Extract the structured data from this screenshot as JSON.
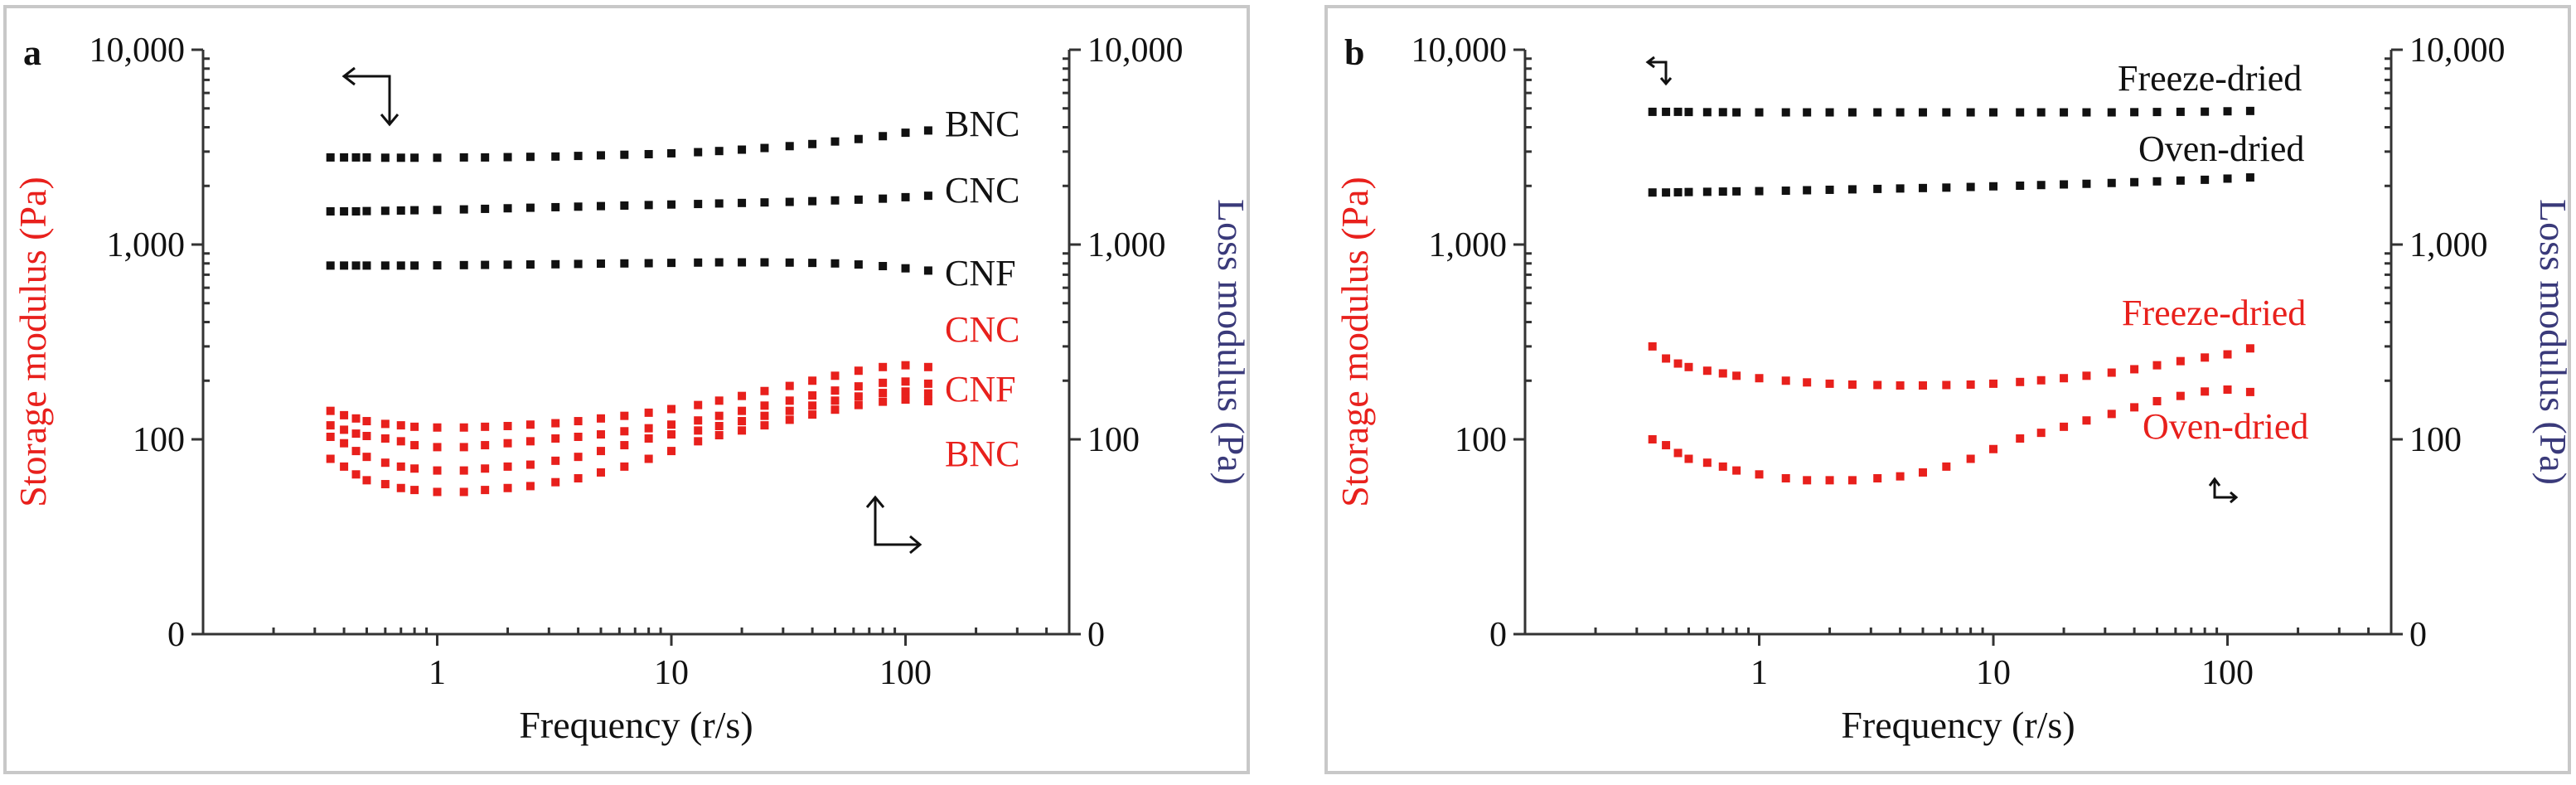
{
  "colors": {
    "storage": "#111111",
    "loss": "#e8201c",
    "loss_axis_label": "#3a3a7a"
  },
  "chart_data": [
    {
      "type": "scatter",
      "panel_label": "a",
      "title": "",
      "xlabel": "Frequency (r/s)",
      "ylabel": "Storage modulus (Pa)",
      "y2label": "Loss modulus (Pa)",
      "x_scale": "log",
      "y_scale": "symlog",
      "xlim": [
        0.1,
        500
      ],
      "ylim": [
        0,
        10000
      ],
      "x_ticks": [
        1,
        10,
        100
      ],
      "x_tick_labels": [
        "1",
        "10",
        "100"
      ],
      "y_ticks": [
        0,
        100,
        1000,
        10000
      ],
      "y_tick_labels": [
        "0",
        "100",
        "1,000",
        "10,000"
      ],
      "grid": false,
      "legend": "inline labels at right end of series",
      "series": [
        {
          "name": "BNC",
          "modulus": "storage",
          "label_color": "storage",
          "x": [
            0.35,
            0.4,
            0.45,
            0.5,
            0.6,
            0.7,
            0.8,
            1,
            1.3,
            1.6,
            2,
            2.5,
            3.2,
            4,
            5,
            6.3,
            8,
            10,
            13,
            16,
            20,
            25,
            32,
            40,
            50,
            63,
            80,
            100,
            125
          ],
          "y": [
            2800,
            2800,
            2800,
            2800,
            2790,
            2790,
            2790,
            2790,
            2800,
            2800,
            2810,
            2820,
            2830,
            2850,
            2870,
            2890,
            2910,
            2940,
            2980,
            3020,
            3070,
            3130,
            3200,
            3280,
            3380,
            3480,
            3600,
            3750,
            3850
          ]
        },
        {
          "name": "CNC",
          "modulus": "storage",
          "label_color": "storage",
          "x": [
            0.35,
            0.4,
            0.45,
            0.5,
            0.6,
            0.7,
            0.8,
            1,
            1.3,
            1.6,
            2,
            2.5,
            3.2,
            4,
            5,
            6.3,
            8,
            10,
            13,
            16,
            20,
            25,
            32,
            40,
            50,
            63,
            80,
            100,
            125
          ],
          "y": [
            1480,
            1480,
            1480,
            1485,
            1490,
            1495,
            1500,
            1505,
            1515,
            1525,
            1535,
            1545,
            1555,
            1565,
            1575,
            1585,
            1595,
            1605,
            1615,
            1625,
            1635,
            1645,
            1655,
            1670,
            1685,
            1700,
            1720,
            1750,
            1780
          ]
        },
        {
          "name": "CNF",
          "modulus": "storage",
          "label_color": "storage",
          "x": [
            0.35,
            0.4,
            0.45,
            0.5,
            0.6,
            0.7,
            0.8,
            1,
            1.3,
            1.6,
            2,
            2.5,
            3.2,
            4,
            5,
            6.3,
            8,
            10,
            13,
            16,
            20,
            25,
            32,
            40,
            50,
            63,
            80,
            100,
            125
          ],
          "y": [
            780,
            780,
            780,
            780,
            780,
            780,
            780,
            782,
            784,
            786,
            788,
            790,
            792,
            795,
            798,
            800,
            802,
            805,
            808,
            810,
            810,
            810,
            808,
            805,
            800,
            790,
            775,
            755,
            735
          ]
        },
        {
          "name": "CNC",
          "modulus": "loss",
          "label_color": "loss",
          "x": [
            0.35,
            0.4,
            0.45,
            0.5,
            0.6,
            0.7,
            0.8,
            1,
            1.3,
            1.6,
            2,
            2.5,
            3.2,
            4,
            5,
            6.3,
            8,
            10,
            13,
            16,
            20,
            25,
            32,
            40,
            50,
            63,
            80,
            100,
            125
          ],
          "y": [
            140,
            133,
            128,
            124,
            120,
            118,
            116,
            115,
            115,
            116,
            117,
            119,
            121,
            124,
            128,
            132,
            137,
            143,
            150,
            158,
            167,
            177,
            188,
            200,
            212,
            225,
            235,
            240,
            235
          ]
        },
        {
          "name": "CNF",
          "modulus": "loss",
          "label_color": "loss",
          "x": [
            0.35,
            0.4,
            0.45,
            0.5,
            0.6,
            0.7,
            0.8,
            1,
            1.3,
            1.6,
            2,
            2.5,
            3.2,
            4,
            5,
            6.3,
            8,
            10,
            13,
            16,
            20,
            25,
            32,
            40,
            50,
            63,
            80,
            100,
            125
          ],
          "y": [
            118,
            112,
            107,
            104,
            101,
            99,
            97,
            96,
            96,
            97,
            98,
            99,
            101,
            103,
            106,
            110,
            114,
            119,
            125,
            132,
            140,
            149,
            158,
            168,
            178,
            187,
            195,
            198,
            193
          ]
        },
        {
          "name": "",
          "modulus": "loss",
          "label_color": "loss",
          "x": [
            0.35,
            0.4,
            0.45,
            0.5,
            0.6,
            0.7,
            0.8,
            1,
            1.3,
            1.6,
            2,
            2.5,
            3.2,
            4,
            5,
            6.3,
            8,
            10,
            13,
            16,
            20,
            25,
            32,
            40,
            50,
            63,
            80,
            100,
            125
          ],
          "y": [
            103,
            98,
            94,
            91,
            88,
            86,
            85,
            84,
            84,
            85,
            86,
            87,
            89,
            91,
            94,
            97,
            101,
            106,
            111,
            117,
            124,
            132,
            140,
            149,
            158,
            166,
            173,
            176,
            172
          ]
        },
        {
          "name": "BNC",
          "modulus": "loss",
          "label_color": "loss",
          "x": [
            0.35,
            0.4,
            0.45,
            0.5,
            0.6,
            0.7,
            0.8,
            1,
            1.3,
            1.6,
            2,
            2.5,
            3.2,
            4,
            5,
            6.3,
            8,
            10,
            13,
            16,
            20,
            25,
            32,
            40,
            50,
            63,
            80,
            100,
            125
          ],
          "y": [
            90,
            86,
            82,
            79,
            77,
            75,
            74,
            73,
            73,
            74,
            75,
            76,
            78,
            80,
            83,
            86,
            90,
            94,
            99,
            105,
            111,
            118,
            126,
            134,
            142,
            150,
            156,
            160,
            157
          ]
        }
      ]
    },
    {
      "type": "scatter",
      "panel_label": "b",
      "title": "",
      "xlabel": "Frequency (r/s)",
      "ylabel": "Storage modulus (Pa)",
      "y2label": "Loss modulus (Pa)",
      "x_scale": "log",
      "y_scale": "symlog",
      "xlim": [
        0.1,
        500
      ],
      "ylim": [
        0,
        10000
      ],
      "x_ticks": [
        1,
        10,
        100
      ],
      "x_tick_labels": [
        "1",
        "10",
        "100"
      ],
      "y_ticks": [
        0,
        100,
        1000,
        10000
      ],
      "y_tick_labels": [
        "0",
        "100",
        "1,000",
        "10,000"
      ],
      "grid": false,
      "legend": "inline labels at right end of series",
      "series": [
        {
          "name": "Freeze-dried",
          "modulus": "storage",
          "label_color": "storage",
          "x": [
            0.35,
            0.4,
            0.45,
            0.5,
            0.6,
            0.7,
            0.8,
            1,
            1.3,
            1.6,
            2,
            2.5,
            3.2,
            4,
            5,
            6.3,
            8,
            10,
            13,
            16,
            20,
            25,
            32,
            40,
            50,
            63,
            80,
            100,
            125
          ],
          "y": [
            4800,
            4800,
            4800,
            4790,
            4780,
            4780,
            4770,
            4770,
            4770,
            4770,
            4770,
            4770,
            4770,
            4770,
            4770,
            4770,
            4770,
            4770,
            4770,
            4770,
            4770,
            4770,
            4770,
            4780,
            4790,
            4800,
            4810,
            4830,
            4850
          ]
        },
        {
          "name": "Oven-dried",
          "modulus": "storage",
          "label_color": "storage",
          "x": [
            0.35,
            0.4,
            0.45,
            0.5,
            0.6,
            0.7,
            0.8,
            1,
            1.3,
            1.6,
            2,
            2.5,
            3.2,
            4,
            5,
            6.3,
            8,
            10,
            13,
            16,
            20,
            25,
            32,
            40,
            50,
            63,
            80,
            100,
            125
          ],
          "y": [
            1850,
            1850,
            1855,
            1860,
            1865,
            1870,
            1875,
            1880,
            1890,
            1900,
            1910,
            1920,
            1930,
            1940,
            1950,
            1960,
            1975,
            1990,
            2005,
            2020,
            2035,
            2050,
            2070,
            2090,
            2110,
            2130,
            2150,
            2180,
            2210
          ]
        },
        {
          "name": "Freeze-dried",
          "modulus": "loss",
          "label_color": "loss",
          "x": [
            0.35,
            0.4,
            0.45,
            0.5,
            0.6,
            0.7,
            0.8,
            1,
            1.3,
            1.6,
            2,
            2.5,
            3.2,
            4,
            5,
            6.3,
            8,
            10,
            13,
            16,
            20,
            25,
            32,
            40,
            50,
            63,
            80,
            100,
            125
          ],
          "y": [
            300,
            260,
            245,
            235,
            225,
            218,
            212,
            206,
            200,
            196,
            193,
            191,
            190,
            189,
            189,
            190,
            191,
            193,
            197,
            201,
            206,
            212,
            220,
            229,
            240,
            252,
            263,
            273,
            293
          ]
        },
        {
          "name": "Oven-dried",
          "modulus": "loss",
          "label_color": "loss",
          "x": [
            0.35,
            0.4,
            0.45,
            0.5,
            0.6,
            0.7,
            0.8,
            1,
            1.3,
            1.6,
            2,
            2.5,
            3.2,
            4,
            5,
            6.3,
            8,
            10,
            13,
            16,
            20,
            25,
            32,
            40,
            50,
            63,
            80,
            100,
            125
          ],
          "y": [
            100,
            97,
            93,
            90,
            88,
            86,
            84,
            82,
            80,
            79,
            79,
            79,
            80,
            81,
            83,
            86,
            90,
            95,
            101,
            108,
            116,
            125,
            135,
            146,
            157,
            167,
            176,
            180,
            175
          ]
        }
      ]
    }
  ]
}
